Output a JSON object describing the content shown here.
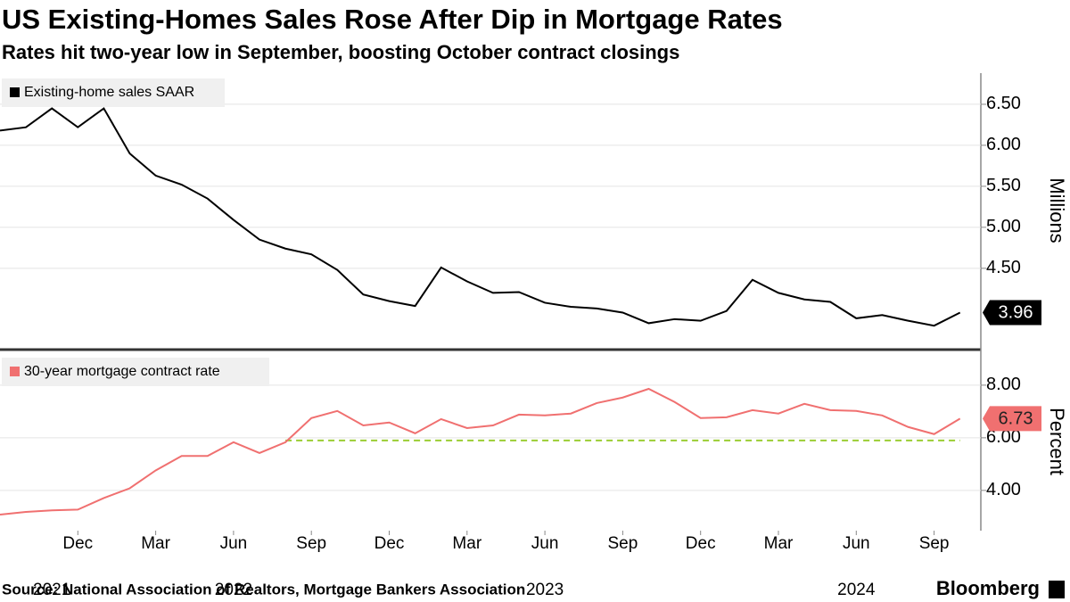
{
  "chart_data": {
    "type": "line",
    "title": "US Existing-Homes Sales Rose After Dip in Mortgage Rates",
    "subtitle": "Rates hit two-year low in September, boosting October contract closings",
    "source": "Source: National Association of Realtors, Mortgage Bankers Association",
    "brand": "Bloomberg",
    "x": [
      "2021-09",
      "2021-10",
      "2021-11",
      "2021-12",
      "2022-01",
      "2022-02",
      "2022-03",
      "2022-04",
      "2022-05",
      "2022-06",
      "2022-07",
      "2022-08",
      "2022-09",
      "2022-10",
      "2022-11",
      "2022-12",
      "2023-01",
      "2023-02",
      "2023-03",
      "2023-04",
      "2023-05",
      "2023-06",
      "2023-07",
      "2023-08",
      "2023-09",
      "2023-10",
      "2023-11",
      "2023-12",
      "2024-01",
      "2024-02",
      "2024-03",
      "2024-04",
      "2024-05",
      "2024-06",
      "2024-07",
      "2024-08",
      "2024-09",
      "2024-10"
    ],
    "xticks": [
      {
        "value": "2021-12",
        "label": "Dec"
      },
      {
        "value": "2022-03",
        "label": "Mar"
      },
      {
        "value": "2022-06",
        "label": "Jun"
      },
      {
        "value": "2022-09",
        "label": "Sep"
      },
      {
        "value": "2022-12",
        "label": "Dec"
      },
      {
        "value": "2023-03",
        "label": "Mar"
      },
      {
        "value": "2023-06",
        "label": "Jun"
      },
      {
        "value": "2023-09",
        "label": "Sep"
      },
      {
        "value": "2023-12",
        "label": "Dec"
      },
      {
        "value": "2024-03",
        "label": "Mar"
      },
      {
        "value": "2024-06",
        "label": "Jun"
      },
      {
        "value": "2024-09",
        "label": "Sep"
      }
    ],
    "year_labels": [
      {
        "value": "2021-11",
        "label": "2021"
      },
      {
        "value": "2022-06",
        "label": "2022"
      },
      {
        "value": "2023-06",
        "label": "2023"
      },
      {
        "value": "2024-06",
        "label": "2024"
      }
    ],
    "panels": [
      {
        "axis_label": "Millions",
        "ylim": [
          3.53,
          6.88
        ],
        "yticks": [
          {
            "value": 4.5,
            "label": "4.50"
          },
          {
            "value": 5,
            "label": "5.00"
          },
          {
            "value": 5.5,
            "label": "5.50"
          },
          {
            "value": 6,
            "label": "6.00"
          },
          {
            "value": 6.5,
            "label": "6.50"
          }
        ],
        "series": [
          {
            "name": "Existing-home sales SAAR",
            "color": "#000000",
            "values": [
              6.18,
              6.22,
              6.45,
              6.22,
              6.45,
              5.9,
              5.63,
              5.52,
              5.35,
              5.09,
              4.85,
              4.74,
              4.67,
              4.48,
              4.18,
              4.1,
              4.04,
              4.51,
              4.34,
              4.2,
              4.21,
              4.08,
              4.03,
              4.01,
              3.96,
              3.83,
              3.88,
              3.86,
              3.98,
              4.36,
              4.2,
              4.12,
              4.09,
              3.89,
              3.93,
              3.86,
              3.8,
              3.96
            ]
          }
        ]
      },
      {
        "axis_label": "Percent",
        "ylim": [
          2.47,
          9.25
        ],
        "yticks": [
          {
            "value": 4,
            "label": "4.00"
          },
          {
            "value": 6,
            "label": "6.00"
          },
          {
            "value": 8,
            "label": "8.00"
          }
        ],
        "reference_line": {
          "value": 5.9,
          "start": "2022-08",
          "color": "#9acd32"
        },
        "series": [
          {
            "name": "30-year mortgage contract rate",
            "color": "#f07070",
            "values": [
              3.08,
              3.18,
              3.24,
              3.27,
              3.71,
              4.08,
              4.76,
              5.31,
              5.31,
              5.83,
              5.42,
              5.83,
              6.75,
              7.02,
              6.47,
              6.58,
              6.17,
              6.71,
              6.37,
              6.47,
              6.88,
              6.85,
              6.92,
              7.32,
              7.53,
              7.86,
              7.36,
              6.75,
              6.78,
              7.05,
              6.92,
              7.29,
              7.05,
              7.02,
              6.85,
              6.41,
              6.14,
              6.73
            ]
          }
        ]
      }
    ]
  }
}
